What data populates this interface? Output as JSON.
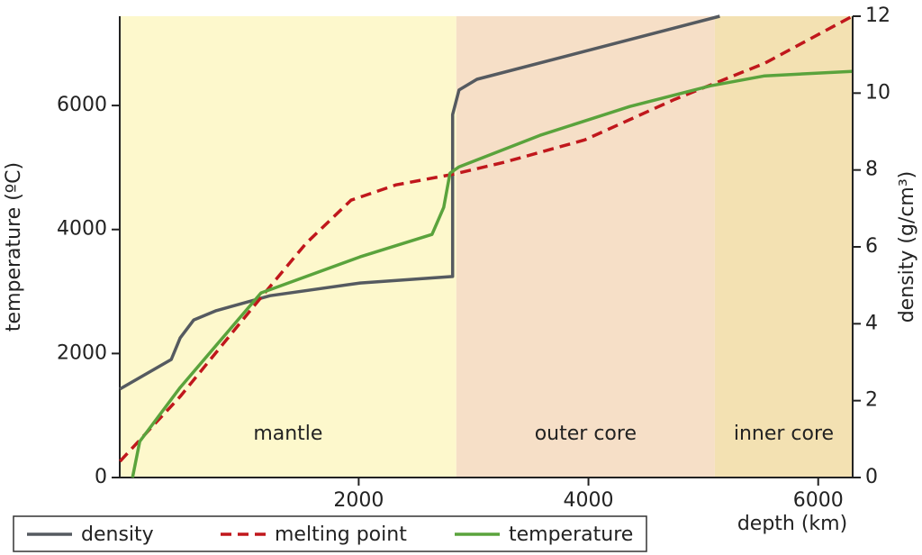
{
  "chart_data": {
    "type": "line",
    "xlabel": "depth (km)",
    "ylabel": "temperature (ºC)",
    "y2label": "density (g/cm³)",
    "xlim": [
      -80,
      6300
    ],
    "xticks": [
      2000,
      4000,
      6000
    ],
    "ylim": [
      0,
      7440
    ],
    "yticks": [
      0,
      2000,
      4000,
      6000
    ],
    "y2lim": [
      0,
      12
    ],
    "y2ticks": [
      0,
      2,
      4,
      6,
      8,
      10,
      12
    ],
    "regions": [
      {
        "name": "mantle",
        "from": -80,
        "to": 2850,
        "color": "#fdf8cc"
      },
      {
        "name": "outer core",
        "from": 2850,
        "to": 5100,
        "color": "#f6dfc7"
      },
      {
        "name": "inner core",
        "from": 5100,
        "to": 6300,
        "color": "#f3e1b2"
      }
    ],
    "legend": "bottom-left",
    "series": [
      {
        "name": "density",
        "color": "#555a60",
        "axis": "y2",
        "dash": false,
        "x": [
          -80,
          368,
          446,
          564,
          760,
          1229,
          2012,
          2818,
          2818,
          2873,
          3029,
          5143
        ],
        "values": [
          2.3,
          3.07,
          3.63,
          4.1,
          4.34,
          4.73,
          5.06,
          5.23,
          9.44,
          10.08,
          10.36,
          12.0
        ]
      },
      {
        "name": "melting point",
        "color": "#c0171c",
        "axis": "y",
        "dash": true,
        "x": [
          -78,
          446,
          1150,
          1542,
          1933,
          2325,
          2834,
          3264,
          3969,
          4752,
          5534,
          6293
        ],
        "values": [
          261,
          1307,
          2905,
          3776,
          4473,
          4720,
          4895,
          5083,
          5447,
          6100,
          6681,
          7436
        ]
      },
      {
        "name": "temperature",
        "color": "#5aa33c",
        "axis": "y",
        "dash": false,
        "x": [
          31,
          94,
          446,
          1150,
          2012,
          2638,
          2740,
          2795,
          2873,
          3578,
          4360,
          5065,
          5534,
          6293
        ],
        "values": [
          0,
          581,
          1452,
          2977,
          3558,
          3921,
          4357,
          4909,
          5011,
          5519,
          5984,
          6318,
          6478,
          6550
        ]
      }
    ]
  }
}
